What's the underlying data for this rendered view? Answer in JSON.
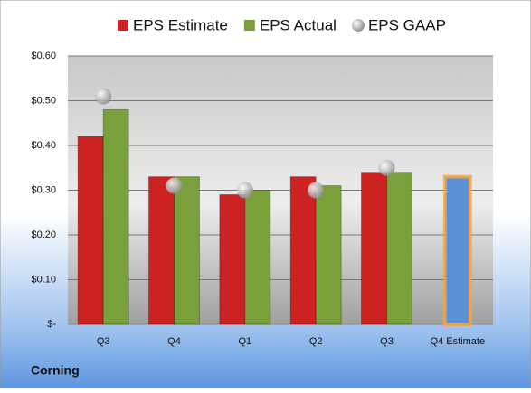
{
  "chart_data": {
    "type": "bar",
    "categories": [
      "Q3",
      "Q4",
      "Q1",
      "Q2",
      "Q3",
      "Q4 Estimate"
    ],
    "series": [
      {
        "name": "EPS Estimate",
        "color": "#cc2222",
        "colors": [
          "#cc2222",
          "#cc2222",
          "#cc2222",
          "#cc2222",
          "#cc2222",
          "#5b8fd6"
        ],
        "values": [
          0.42,
          0.33,
          0.29,
          0.33,
          0.34,
          0.33
        ]
      },
      {
        "name": "EPS Actual",
        "color": "#7aa03c",
        "values": [
          0.48,
          0.33,
          0.3,
          0.31,
          0.34,
          null
        ]
      },
      {
        "name": "EPS GAAP",
        "color": "#a8a8a8",
        "marker": "circle",
        "values": [
          0.51,
          0.31,
          0.3,
          0.3,
          0.35,
          null
        ]
      }
    ],
    "ylim": [
      0,
      0.6
    ],
    "yticks": [
      {
        "value": 0,
        "label": "$-"
      },
      {
        "value": 0.1,
        "label": "$0.10"
      },
      {
        "value": 0.2,
        "label": "$0.20"
      },
      {
        "value": 0.3,
        "label": "$0.30"
      },
      {
        "value": 0.4,
        "label": "$0.40"
      },
      {
        "value": 0.5,
        "label": "$0.50"
      },
      {
        "value": 0.6,
        "label": "$0.60"
      }
    ],
    "grid": true,
    "legend": "top",
    "company": "Corning"
  }
}
